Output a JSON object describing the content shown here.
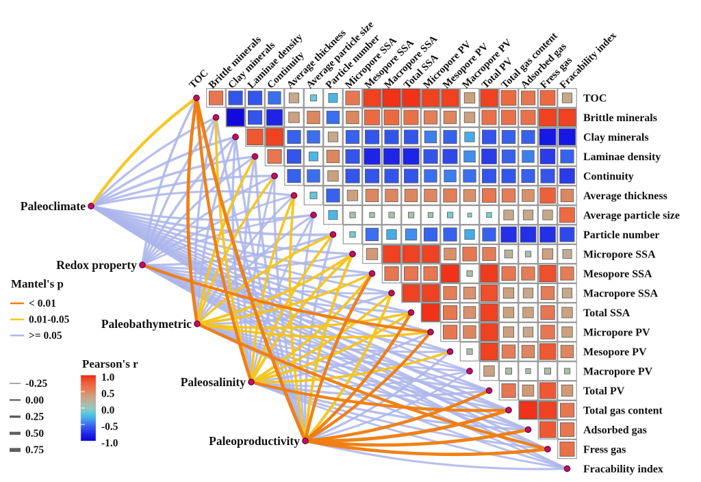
{
  "chart_data": {
    "type": "heatmap",
    "subtype": "mantel-correlation-network",
    "variables": [
      "TOC",
      "Brittle minerals",
      "Clay minerals",
      "Laminae density",
      "Continuity",
      "Average thickness",
      "Average particle size",
      "Particle number",
      "Micropore SSA",
      "Mesopore SSA",
      "Macropore SSA",
      "Total SSA",
      "Micropore PV",
      "Mesopore PV",
      "Macropore PV",
      "Total PV",
      "Total gas content",
      "Adsorbed gas",
      "Fress gas",
      "Fracability index"
    ],
    "pearson_upper_triangle": [
      [
        0.6,
        -0.6,
        -0.6,
        -0.5,
        0.3,
        -0.12,
        -0.25,
        0.6,
        0.9,
        0.95,
        0.95,
        0.9,
        0.9,
        0.35,
        0.9,
        0.7,
        0.6,
        0.7,
        0.3
      ],
      [
        -0.95,
        -0.6,
        -0.8,
        0.35,
        0.5,
        -0.5,
        0.5,
        0.7,
        0.7,
        0.65,
        0.55,
        0.5,
        0.35,
        0.65,
        0.65,
        0.65,
        0.9,
        0.9
      ],
      [
        0.8,
        0.9,
        -0.55,
        -0.5,
        0.3,
        -0.55,
        -0.6,
        -0.6,
        -0.6,
        -0.45,
        -0.55,
        -0.3,
        -0.6,
        -0.55,
        -0.55,
        -0.85,
        -0.85
      ],
      [
        0.6,
        -0.6,
        -0.25,
        0.5,
        -0.6,
        -0.8,
        -0.8,
        -0.8,
        -0.6,
        -0.65,
        -0.4,
        -0.7,
        -0.55,
        -0.45,
        -0.7,
        -0.55
      ],
      [
        -0.55,
        -0.5,
        0.35,
        -0.6,
        -0.6,
        -0.6,
        -0.6,
        -0.5,
        -0.45,
        -0.5,
        -0.6,
        -0.6,
        -0.55,
        -0.6,
        -0.7
      ],
      [
        -0.15,
        -0.55,
        0.35,
        0.5,
        0.5,
        0.5,
        0.5,
        0.55,
        0.45,
        0.6,
        0.55,
        0.45,
        0.75,
        0.5
      ],
      [
        -0.25,
        0.1,
        0.08,
        0.1,
        0.1,
        0.08,
        -0.1,
        -0.05,
        -0.08,
        0.3,
        0.3,
        0.3,
        0.7
      ],
      [
        -0.1,
        -0.5,
        -0.3,
        -0.4,
        -0.55,
        -0.55,
        -0.3,
        -0.55,
        -0.75,
        -0.75,
        -0.75,
        -0.65
      ],
      [
        0.4,
        0.9,
        0.9,
        0.9,
        0.45,
        0.6,
        0.55,
        0.2,
        0.1,
        0.35,
        0.25
      ],
      [
        0.6,
        0.6,
        0.6,
        0.95,
        0.1,
        0.92,
        0.6,
        0.55,
        0.85,
        0.55
      ],
      [
        0.9,
        0.9,
        0.55,
        0.45,
        0.85,
        0.35,
        0.3,
        0.55,
        0.3
      ],
      [
        0.95,
        0.6,
        0.45,
        0.9,
        0.35,
        0.35,
        0.6,
        0.35
      ],
      [
        0.6,
        0.5,
        0.9,
        0.35,
        0.3,
        0.6,
        0.35
      ],
      [
        0.1,
        0.9,
        0.55,
        0.5,
        0.8,
        0.5
      ],
      [
        0.35,
        0.12,
        0.08,
        0.12,
        0.1
      ],
      [
        0.6,
        0.4,
        0.8,
        0.4
      ],
      [
        0.95,
        0.9,
        0.6
      ],
      [
        0.8,
        0.6
      ],
      [
        0.65
      ]
    ],
    "factors": [
      {
        "name": "Paleoclimate",
        "links": [
          [
            1,
            0.45
          ],
          [
            2,
            0.25
          ],
          [
            2,
            0.3
          ],
          [
            2,
            0.3
          ],
          [
            2,
            0.25
          ],
          [
            2,
            0.2
          ],
          [
            2,
            0.2
          ],
          [
            2,
            0.3
          ],
          [
            2,
            0.25
          ],
          [
            2,
            0.25
          ],
          [
            2,
            0.2
          ],
          [
            2,
            0.25
          ],
          [
            2,
            0.25
          ],
          [
            2,
            0.2
          ],
          [
            2,
            0.1
          ],
          [
            2,
            0.25
          ],
          [
            2,
            0.3
          ],
          [
            2,
            0.25
          ],
          [
            2,
            0.25
          ],
          [
            2,
            0.15
          ]
        ]
      },
      {
        "name": "Redox property",
        "links": [
          [
            2,
            0.3
          ],
          [
            2,
            0.25
          ],
          [
            2,
            0.3
          ],
          [
            2,
            0.25
          ],
          [
            2,
            0.2
          ],
          [
            2,
            0.15
          ],
          [
            2,
            0.1
          ],
          [
            2,
            0.25
          ],
          [
            2,
            0.2
          ],
          [
            2,
            0.2
          ],
          [
            2,
            0.15
          ],
          [
            2,
            0.2
          ],
          [
            0,
            0.45
          ],
          [
            2,
            0.15
          ],
          [
            2,
            0.1
          ],
          [
            2,
            0.2
          ],
          [
            2,
            0.25
          ],
          [
            2,
            0.2
          ],
          [
            2,
            0.2
          ],
          [
            2,
            0.1
          ]
        ]
      },
      {
        "name": "Paleobathymetric",
        "links": [
          [
            0,
            0.55
          ],
          [
            2,
            0.25
          ],
          [
            2,
            0.25
          ],
          [
            1,
            0.35
          ],
          [
            1,
            0.3
          ],
          [
            2,
            0.2
          ],
          [
            2,
            0.2
          ],
          [
            1,
            0.3
          ],
          [
            1,
            0.35
          ],
          [
            1,
            0.3
          ],
          [
            2,
            0.25
          ],
          [
            1,
            0.3
          ],
          [
            1,
            0.3
          ],
          [
            2,
            0.2
          ],
          [
            2,
            0.15
          ],
          [
            2,
            0.25
          ],
          [
            2,
            0.25
          ],
          [
            2,
            0.2
          ],
          [
            0,
            0.45
          ],
          [
            2,
            0.15
          ]
        ]
      },
      {
        "name": "Paleosalinity",
        "links": [
          [
            0,
            0.5
          ],
          [
            1,
            0.3
          ],
          [
            2,
            0.25
          ],
          [
            2,
            0.25
          ],
          [
            2,
            0.2
          ],
          [
            1,
            0.3
          ],
          [
            2,
            0.2
          ],
          [
            1,
            0.3
          ],
          [
            1,
            0.35
          ],
          [
            1,
            0.35
          ],
          [
            1,
            0.3
          ],
          [
            1,
            0.35
          ],
          [
            2,
            0.25
          ],
          [
            1,
            0.3
          ],
          [
            2,
            0.1
          ],
          [
            2,
            0.25
          ],
          [
            0,
            0.45
          ],
          [
            2,
            0.25
          ],
          [
            2,
            0.2
          ],
          [
            2,
            0.15
          ]
        ]
      },
      {
        "name": "Paleoproductivity",
        "links": [
          [
            0,
            0.6
          ],
          [
            2,
            0.25
          ],
          [
            2,
            0.25
          ],
          [
            2,
            0.3
          ],
          [
            2,
            0.25
          ],
          [
            1,
            0.3
          ],
          [
            2,
            0.2
          ],
          [
            2,
            0.3
          ],
          [
            1,
            0.4
          ],
          [
            0,
            0.5
          ],
          [
            1,
            0.4
          ],
          [
            0,
            0.5
          ],
          [
            0,
            0.45
          ],
          [
            2,
            0.25
          ],
          [
            2,
            0.15
          ],
          [
            0,
            0.5
          ],
          [
            0,
            0.6
          ],
          [
            0,
            0.55
          ],
          [
            0,
            0.55
          ],
          [
            2,
            0.2
          ]
        ]
      }
    ],
    "p_class_labels": [
      "< 0.01",
      "0.01-0.05",
      ">= 0.05"
    ],
    "colormap_ticks": [
      1.0,
      0.5,
      0.0,
      -0.5,
      -1.0
    ],
    "edge_width_ticks": [
      -0.25,
      0.0,
      0.25,
      0.5,
      0.75
    ]
  },
  "legends": {
    "mantel_p": {
      "title": "Mantel's p",
      "items": [
        {
          "label": "< 0.01",
          "class": 0
        },
        {
          "label": "0.01-0.05",
          "class": 1
        },
        {
          "label": ">= 0.05",
          "class": 2
        }
      ]
    },
    "edge_width": {
      "labels": [
        "-0.25",
        "0.00",
        "0.25",
        "0.50",
        "0.75"
      ]
    },
    "pearson": {
      "title": "Pearson's r",
      "ticks": [
        "1.0",
        "0.5",
        "0.0",
        "-0.5",
        "-1.0"
      ]
    }
  },
  "colors": {
    "edge_p_lt001": "#f07d10",
    "edge_p_0105": "#f6c41c",
    "edge_p_ge005": "#adb6ec",
    "node_fill": "#c01061",
    "node_stroke": "#70083a",
    "cell_box_stroke": "#8e8e8e",
    "cell_inner_stroke": "#5a5a5a",
    "width_legend_line": "#5f5f5f",
    "colormap_stops": [
      [
        1.0,
        "#f2240e"
      ],
      [
        0.85,
        "#ef4f2b"
      ],
      [
        0.7,
        "#ec6a42"
      ],
      [
        0.55,
        "#e37e58"
      ],
      [
        0.4,
        "#d29a74"
      ],
      [
        0.28,
        "#c3ab8e"
      ],
      [
        0.15,
        "#b1b7a4"
      ],
      [
        0.05,
        "#a2c4b2"
      ],
      [
        -0.05,
        "#86cfc8"
      ],
      [
        -0.2,
        "#4fc4e1"
      ],
      [
        -0.35,
        "#459eee"
      ],
      [
        -0.5,
        "#3b6fee"
      ],
      [
        -0.7,
        "#2a3be9"
      ],
      [
        -0.85,
        "#1619e3"
      ],
      [
        -1.0,
        "#0d02da"
      ]
    ]
  }
}
